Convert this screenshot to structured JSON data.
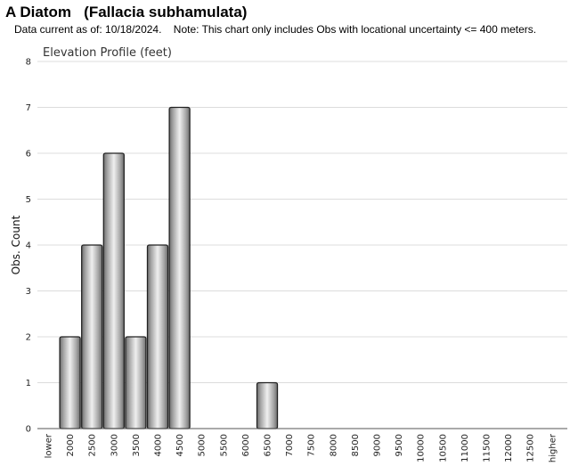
{
  "header": {
    "common_name": "A Diatom",
    "scientific_name": "(Fallacia subhamulata)",
    "data_current": "Data current as of: 10/18/2024.",
    "note": "Note: This chart only includes Obs with locational uncertainty <= 400 meters."
  },
  "chart_data": {
    "type": "bar",
    "title": "Elevation Profile (feet)",
    "xlabel": "",
    "ylabel": "Obs. Count",
    "ylim": [
      0,
      8
    ],
    "yticks": [
      0,
      1,
      2,
      3,
      4,
      5,
      6,
      7,
      8
    ],
    "grid": true,
    "categories": [
      "lower",
      "2000",
      "2500",
      "3000",
      "3500",
      "4000",
      "4500",
      "5000",
      "5500",
      "6000",
      "6500",
      "7000",
      "7500",
      "8000",
      "8500",
      "9000",
      "9500",
      "10000",
      "10500",
      "11000",
      "11500",
      "12000",
      "12500",
      "higher"
    ],
    "values": [
      0,
      2,
      4,
      6,
      2,
      4,
      7,
      0,
      0,
      0,
      1,
      0,
      0,
      0,
      0,
      0,
      0,
      0,
      0,
      0,
      0,
      0,
      0,
      0
    ],
    "bar_color": "#b8b8b8"
  }
}
